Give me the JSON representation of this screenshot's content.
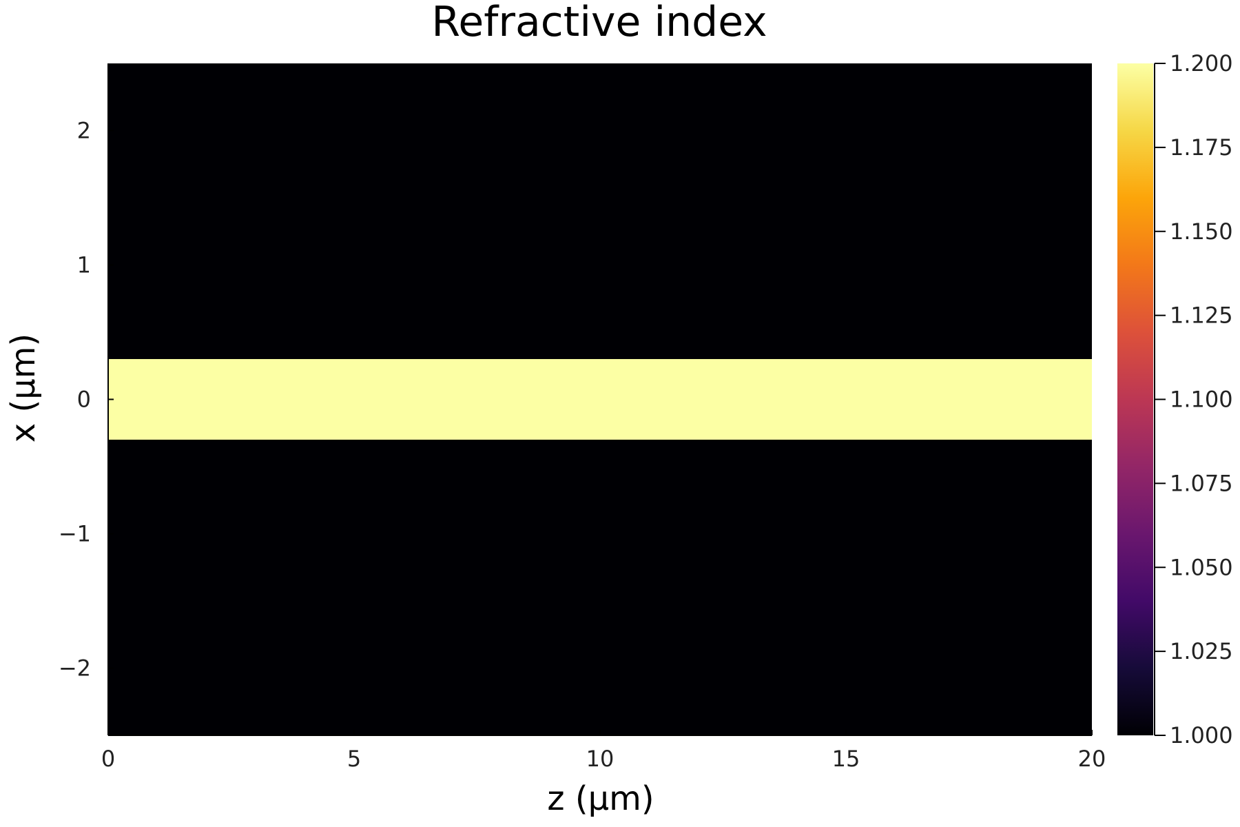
{
  "chart_data": {
    "type": "heatmap",
    "title": "Refractive index",
    "xlabel": "z (μm)",
    "ylabel": "x (μm)",
    "xlim": [
      0,
      20
    ],
    "ylim": [
      -2.5,
      2.5
    ],
    "x_ticks": [
      0,
      5,
      10,
      15,
      20
    ],
    "x_tick_labels": [
      "0",
      "5",
      "10",
      "15",
      "20"
    ],
    "y_ticks": [
      -2,
      -1,
      0,
      1,
      2
    ],
    "y_tick_labels": [
      "−2",
      "−1",
      "0",
      "1",
      "2"
    ],
    "regions": [
      {
        "name": "cladding-top",
        "x_range": [
          0,
          20
        ],
        "y_range": [
          0.3,
          2.5
        ],
        "value": 1.0
      },
      {
        "name": "core",
        "x_range": [
          0,
          20
        ],
        "y_range": [
          -0.3,
          0.3
        ],
        "value": 1.2
      },
      {
        "name": "cladding-bottom",
        "x_range": [
          0,
          20
        ],
        "y_range": [
          -2.5,
          -0.3
        ],
        "value": 1.0
      }
    ],
    "colorbar": {
      "colormap": "inferno",
      "range": [
        1.0,
        1.2
      ],
      "ticks": [
        1.0,
        1.025,
        1.05,
        1.075,
        1.1,
        1.125,
        1.15,
        1.175,
        1.2
      ],
      "tick_labels": [
        "1.000",
        "1.025",
        "1.050",
        "1.075",
        "1.100",
        "1.125",
        "1.150",
        "1.175",
        "1.200"
      ]
    },
    "grid": false,
    "legend": "none"
  }
}
